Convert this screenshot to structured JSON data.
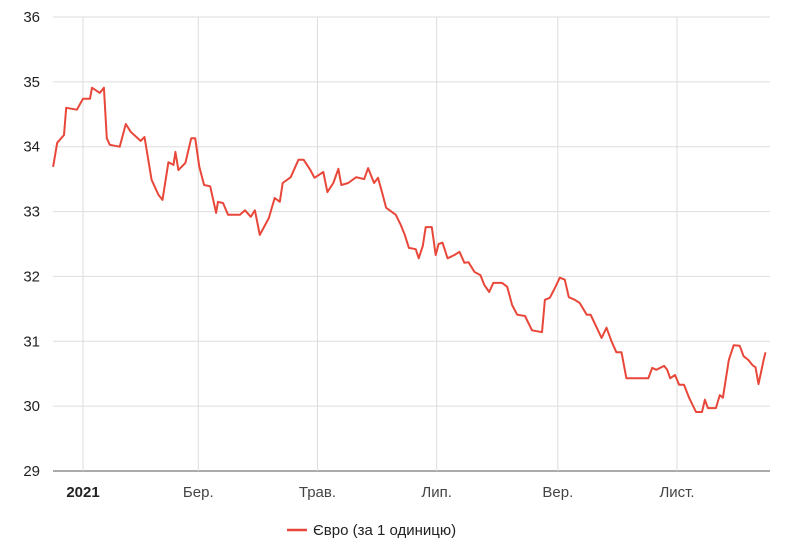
{
  "chart_data": {
    "type": "line",
    "title": "",
    "xlabel": "",
    "ylabel": "",
    "x_unit": "days since 2021-01-01",
    "ylim": [
      29,
      36
    ],
    "xlim": [
      -15.3,
      350
    ],
    "grid": true,
    "legend_position": "bottom",
    "y_ticks": [
      "29",
      "30",
      "31",
      "32",
      "33",
      "34",
      "35",
      "36"
    ],
    "x_ticks": [
      {
        "day": 0,
        "label": "2021",
        "bold": true
      },
      {
        "day": 59,
        "label": "Бер.",
        "bold": false
      },
      {
        "day": 120,
        "label": "Трав.",
        "bold": false
      },
      {
        "day": 181,
        "label": "Лип.",
        "bold": false
      },
      {
        "day": 243,
        "label": "Вер.",
        "bold": false
      },
      {
        "day": 304,
        "label": "Лист.",
        "bold": false
      }
    ],
    "series": [
      {
        "name": "Євро (за 1 одиницю)",
        "color": "#e8473a",
        "x": [
          -15.3,
          -13.2,
          -9.7,
          -8.6,
          -3.1,
          0,
          3.6,
          4.6,
          8.6,
          10.7,
          12.2,
          13.7,
          18.8,
          21.9,
          24.4,
          29.5,
          31.5,
          35.1,
          38.6,
          40.7,
          43.7,
          46.3,
          47.3,
          48.8,
          52.4,
          55.4,
          57.4,
          59.5,
          62.0,
          65.1,
          68.1,
          69.1,
          71.7,
          74.2,
          80.3,
          82.9,
          85.9,
          88.0,
          90.5,
          95.1,
          98.1,
          100.7,
          102.2,
          106.3,
          110.3,
          112.9,
          116.4,
          118.5,
          123.0,
          125.1,
          128.1,
          130.7,
          132.2,
          135.7,
          139.8,
          143.9,
          145.9,
          149.0,
          151.0,
          153.0,
          155.1,
          160.1,
          162.7,
          164.7,
          166.8,
          170.3,
          171.8,
          173.9,
          175.4,
          178.5,
          180.5,
          182.0,
          184.0,
          186.6,
          190.1,
          192.7,
          195.2,
          197.3,
          200.3,
          203.4,
          205.4,
          207.9,
          210.0,
          214.5,
          217.1,
          219.6,
          222.2,
          226.2,
          229.8,
          234.9,
          236.4,
          238.9,
          241.0,
          244.0,
          246.6,
          248.6,
          251.7,
          254.2,
          257.8,
          259.8,
          262.3,
          265.4,
          267.9,
          270.5,
          273.0,
          275.6,
          278.1,
          283.2,
          289.3,
          291.3,
          293.4,
          297.4,
          299.0,
          300.5,
          303.0,
          305.1,
          307.6,
          310.2,
          313.7,
          316.8,
          318.3,
          319.8,
          323.9,
          325.9,
          327.5,
          330.5,
          333.0,
          336.1,
          338.1,
          340.6,
          342.7,
          344.2,
          345.7,
          348.3,
          349.3
        ],
        "values": [
          33.69,
          34.06,
          34.18,
          34.6,
          34.57,
          34.74,
          34.74,
          34.91,
          34.83,
          34.91,
          34.13,
          34.03,
          34.0,
          34.35,
          34.23,
          34.09,
          34.15,
          33.49,
          33.26,
          33.18,
          33.76,
          33.72,
          33.92,
          33.64,
          33.75,
          34.13,
          34.13,
          33.69,
          33.41,
          33.39,
          32.98,
          33.15,
          33.13,
          32.95,
          32.95,
          33.02,
          32.92,
          33.02,
          32.64,
          32.9,
          33.21,
          33.15,
          33.44,
          33.53,
          33.8,
          33.8,
          33.64,
          33.52,
          33.61,
          33.3,
          33.44,
          33.66,
          33.41,
          33.44,
          33.53,
          33.5,
          33.67,
          33.44,
          33.52,
          33.3,
          33.06,
          32.95,
          32.79,
          32.64,
          32.44,
          32.42,
          32.28,
          32.47,
          32.76,
          32.76,
          32.33,
          32.5,
          32.52,
          32.28,
          32.33,
          32.38,
          32.21,
          32.22,
          32.07,
          32.02,
          31.87,
          31.76,
          31.9,
          31.9,
          31.84,
          31.56,
          31.41,
          31.39,
          31.17,
          31.14,
          31.64,
          31.67,
          31.79,
          31.98,
          31.95,
          31.68,
          31.64,
          31.59,
          31.41,
          31.41,
          31.25,
          31.05,
          31.21,
          31.0,
          30.83,
          30.83,
          30.43,
          30.43,
          30.43,
          30.59,
          30.56,
          30.62,
          30.56,
          30.43,
          30.48,
          30.33,
          30.33,
          30.13,
          29.91,
          29.91,
          30.1,
          29.97,
          29.97,
          30.17,
          30.13,
          30.71,
          30.94,
          30.93,
          30.77,
          30.71,
          30.63,
          30.6,
          30.34,
          30.71,
          30.83
        ]
      }
    ]
  }
}
